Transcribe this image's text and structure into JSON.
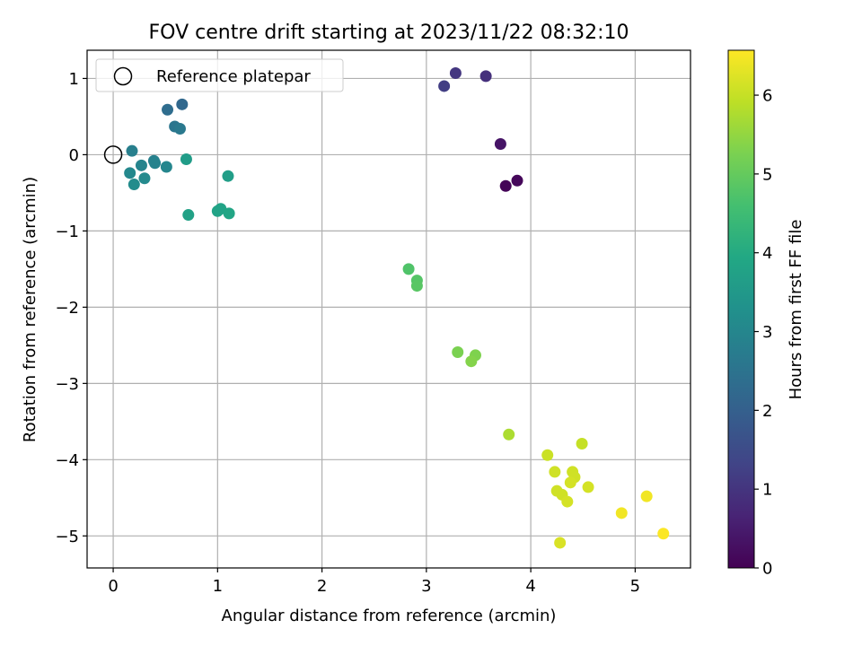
{
  "chart_data": {
    "type": "scatter",
    "title": "FOV centre drift starting at 2023/11/22 08:32:10",
    "xlabel": "Angular distance from reference (arcmin)",
    "ylabel": "Rotation from reference (arcmin)",
    "xlim": [
      -0.25,
      5.53
    ],
    "ylim": [
      -5.42,
      1.37
    ],
    "xticks": [
      0,
      1,
      2,
      3,
      4,
      5
    ],
    "yticks": [
      1,
      0,
      -1,
      -2,
      -3,
      -4,
      -5
    ],
    "xtick_labels": [
      "0",
      "1",
      "2",
      "3",
      "4",
      "5"
    ],
    "ytick_labels": [
      "1",
      "0",
      "−1",
      "−2",
      "−3",
      "−4",
      "−5"
    ],
    "grid": true,
    "legend": {
      "position": "top-left",
      "entries": [
        {
          "label": "Reference platepar",
          "marker": "open-circle"
        }
      ]
    },
    "reference_point": {
      "x": 0,
      "y": 0
    },
    "colorbar": {
      "label": "Hours from first FF file",
      "colormap": "viridis",
      "range": [
        0,
        6.57
      ],
      "ticks": [
        0,
        1,
        2,
        3,
        4,
        5,
        6
      ],
      "tick_labels": [
        "0",
        "1",
        "2",
        "3",
        "4",
        "5",
        "6"
      ]
    },
    "points": [
      {
        "x": 3.76,
        "y": -0.41,
        "t": 0.05
      },
      {
        "x": 3.87,
        "y": -0.34,
        "t": 0.12
      },
      {
        "x": 3.71,
        "y": 0.14,
        "t": 0.35
      },
      {
        "x": 3.57,
        "y": 1.03,
        "t": 0.9
      },
      {
        "x": 3.28,
        "y": 1.07,
        "t": 1.05
      },
      {
        "x": 3.17,
        "y": 0.9,
        "t": 1.2
      },
      {
        "x": 0.66,
        "y": 0.66,
        "t": 2.2
      },
      {
        "x": 0.52,
        "y": 0.59,
        "t": 2.35
      },
      {
        "x": 0.59,
        "y": 0.37,
        "t": 2.55
      },
      {
        "x": 0.64,
        "y": 0.34,
        "t": 2.65
      },
      {
        "x": 0.18,
        "y": 0.05,
        "t": 2.8
      },
      {
        "x": 0.39,
        "y": -0.08,
        "t": 2.85
      },
      {
        "x": 0.4,
        "y": -0.11,
        "t": 2.9
      },
      {
        "x": 0.27,
        "y": -0.14,
        "t": 2.95
      },
      {
        "x": 0.51,
        "y": -0.16,
        "t": 3.0
      },
      {
        "x": 0.16,
        "y": -0.24,
        "t": 3.05
      },
      {
        "x": 0.3,
        "y": -0.31,
        "t": 3.1
      },
      {
        "x": 0.2,
        "y": -0.39,
        "t": 3.15
      },
      {
        "x": 0.7,
        "y": -0.06,
        "t": 3.6
      },
      {
        "x": 1.1,
        "y": -0.28,
        "t": 3.65
      },
      {
        "x": 0.72,
        "y": -0.79,
        "t": 3.75
      },
      {
        "x": 1.0,
        "y": -0.74,
        "t": 3.8
      },
      {
        "x": 1.03,
        "y": -0.71,
        "t": 3.8
      },
      {
        "x": 1.11,
        "y": -0.77,
        "t": 3.85
      },
      {
        "x": 2.83,
        "y": -1.5,
        "t": 4.75
      },
      {
        "x": 2.91,
        "y": -1.65,
        "t": 4.8
      },
      {
        "x": 2.91,
        "y": -1.72,
        "t": 4.85
      },
      {
        "x": 3.3,
        "y": -2.59,
        "t": 5.25
      },
      {
        "x": 3.47,
        "y": -2.63,
        "t": 5.3
      },
      {
        "x": 3.43,
        "y": -2.71,
        "t": 5.35
      },
      {
        "x": 3.79,
        "y": -3.67,
        "t": 5.75
      },
      {
        "x": 4.49,
        "y": -3.79,
        "t": 6.0
      },
      {
        "x": 4.16,
        "y": -3.94,
        "t": 6.05
      },
      {
        "x": 4.23,
        "y": -4.16,
        "t": 6.1
      },
      {
        "x": 4.4,
        "y": -4.16,
        "t": 6.1
      },
      {
        "x": 4.42,
        "y": -4.23,
        "t": 6.1
      },
      {
        "x": 4.38,
        "y": -4.3,
        "t": 6.15
      },
      {
        "x": 4.55,
        "y": -4.36,
        "t": 6.15
      },
      {
        "x": 4.25,
        "y": -4.41,
        "t": 6.1
      },
      {
        "x": 4.3,
        "y": -4.46,
        "t": 6.1
      },
      {
        "x": 4.35,
        "y": -4.55,
        "t": 6.15
      },
      {
        "x": 4.28,
        "y": -5.09,
        "t": 6.2
      },
      {
        "x": 5.11,
        "y": -4.48,
        "t": 6.45
      },
      {
        "x": 4.87,
        "y": -4.7,
        "t": 6.45
      },
      {
        "x": 5.27,
        "y": -4.97,
        "t": 6.55
      }
    ]
  }
}
